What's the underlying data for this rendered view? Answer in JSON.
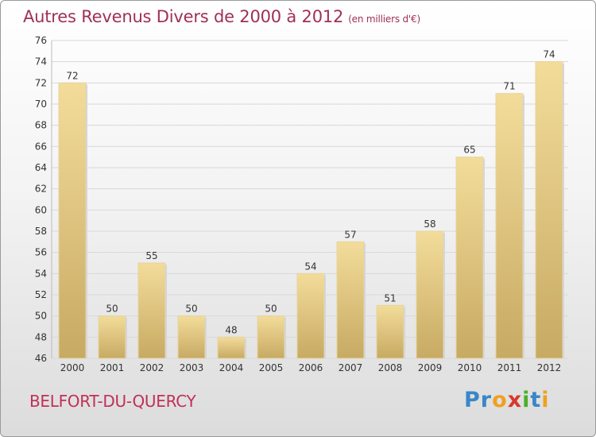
{
  "title": {
    "main": "Autres Revenus Divers de 2000 à 2012",
    "unit": "(en milliers d'€)"
  },
  "location": "BELFORT-DU-QUERCY",
  "logo": {
    "text": "Proxiti",
    "letters": [
      {
        "ch": "P",
        "color": "#3a86c8"
      },
      {
        "ch": "r",
        "color": "#3a86c8"
      },
      {
        "ch": "o",
        "color": "#f0a020"
      },
      {
        "ch": "x",
        "color": "#d63a2a"
      },
      {
        "ch": "i",
        "color": "#4caf2a"
      },
      {
        "ch": "t",
        "color": "#3a86c8"
      },
      {
        "ch": "i",
        "color": "#f0a020"
      }
    ]
  },
  "colors": {
    "bar_top": "#f3dc9a",
    "bar_bottom": "#c7aa63",
    "grid": "#d8d8d8",
    "axis_text": "#333333"
  },
  "chart_data": {
    "type": "bar",
    "title": "Autres Revenus Divers de 2000 à 2012",
    "subtitle": "(en milliers d'€)",
    "categories": [
      "2000",
      "2001",
      "2002",
      "2003",
      "2004",
      "2005",
      "2006",
      "2007",
      "2008",
      "2009",
      "2010",
      "2011",
      "2012"
    ],
    "values": [
      72,
      50,
      55,
      50,
      48,
      50,
      54,
      57,
      51,
      58,
      65,
      71,
      74
    ],
    "ylim": [
      46,
      76
    ],
    "yticks": [
      46,
      48,
      50,
      52,
      54,
      56,
      58,
      60,
      62,
      64,
      66,
      68,
      70,
      72,
      74,
      76
    ],
    "grid": true,
    "data_labels": true
  }
}
